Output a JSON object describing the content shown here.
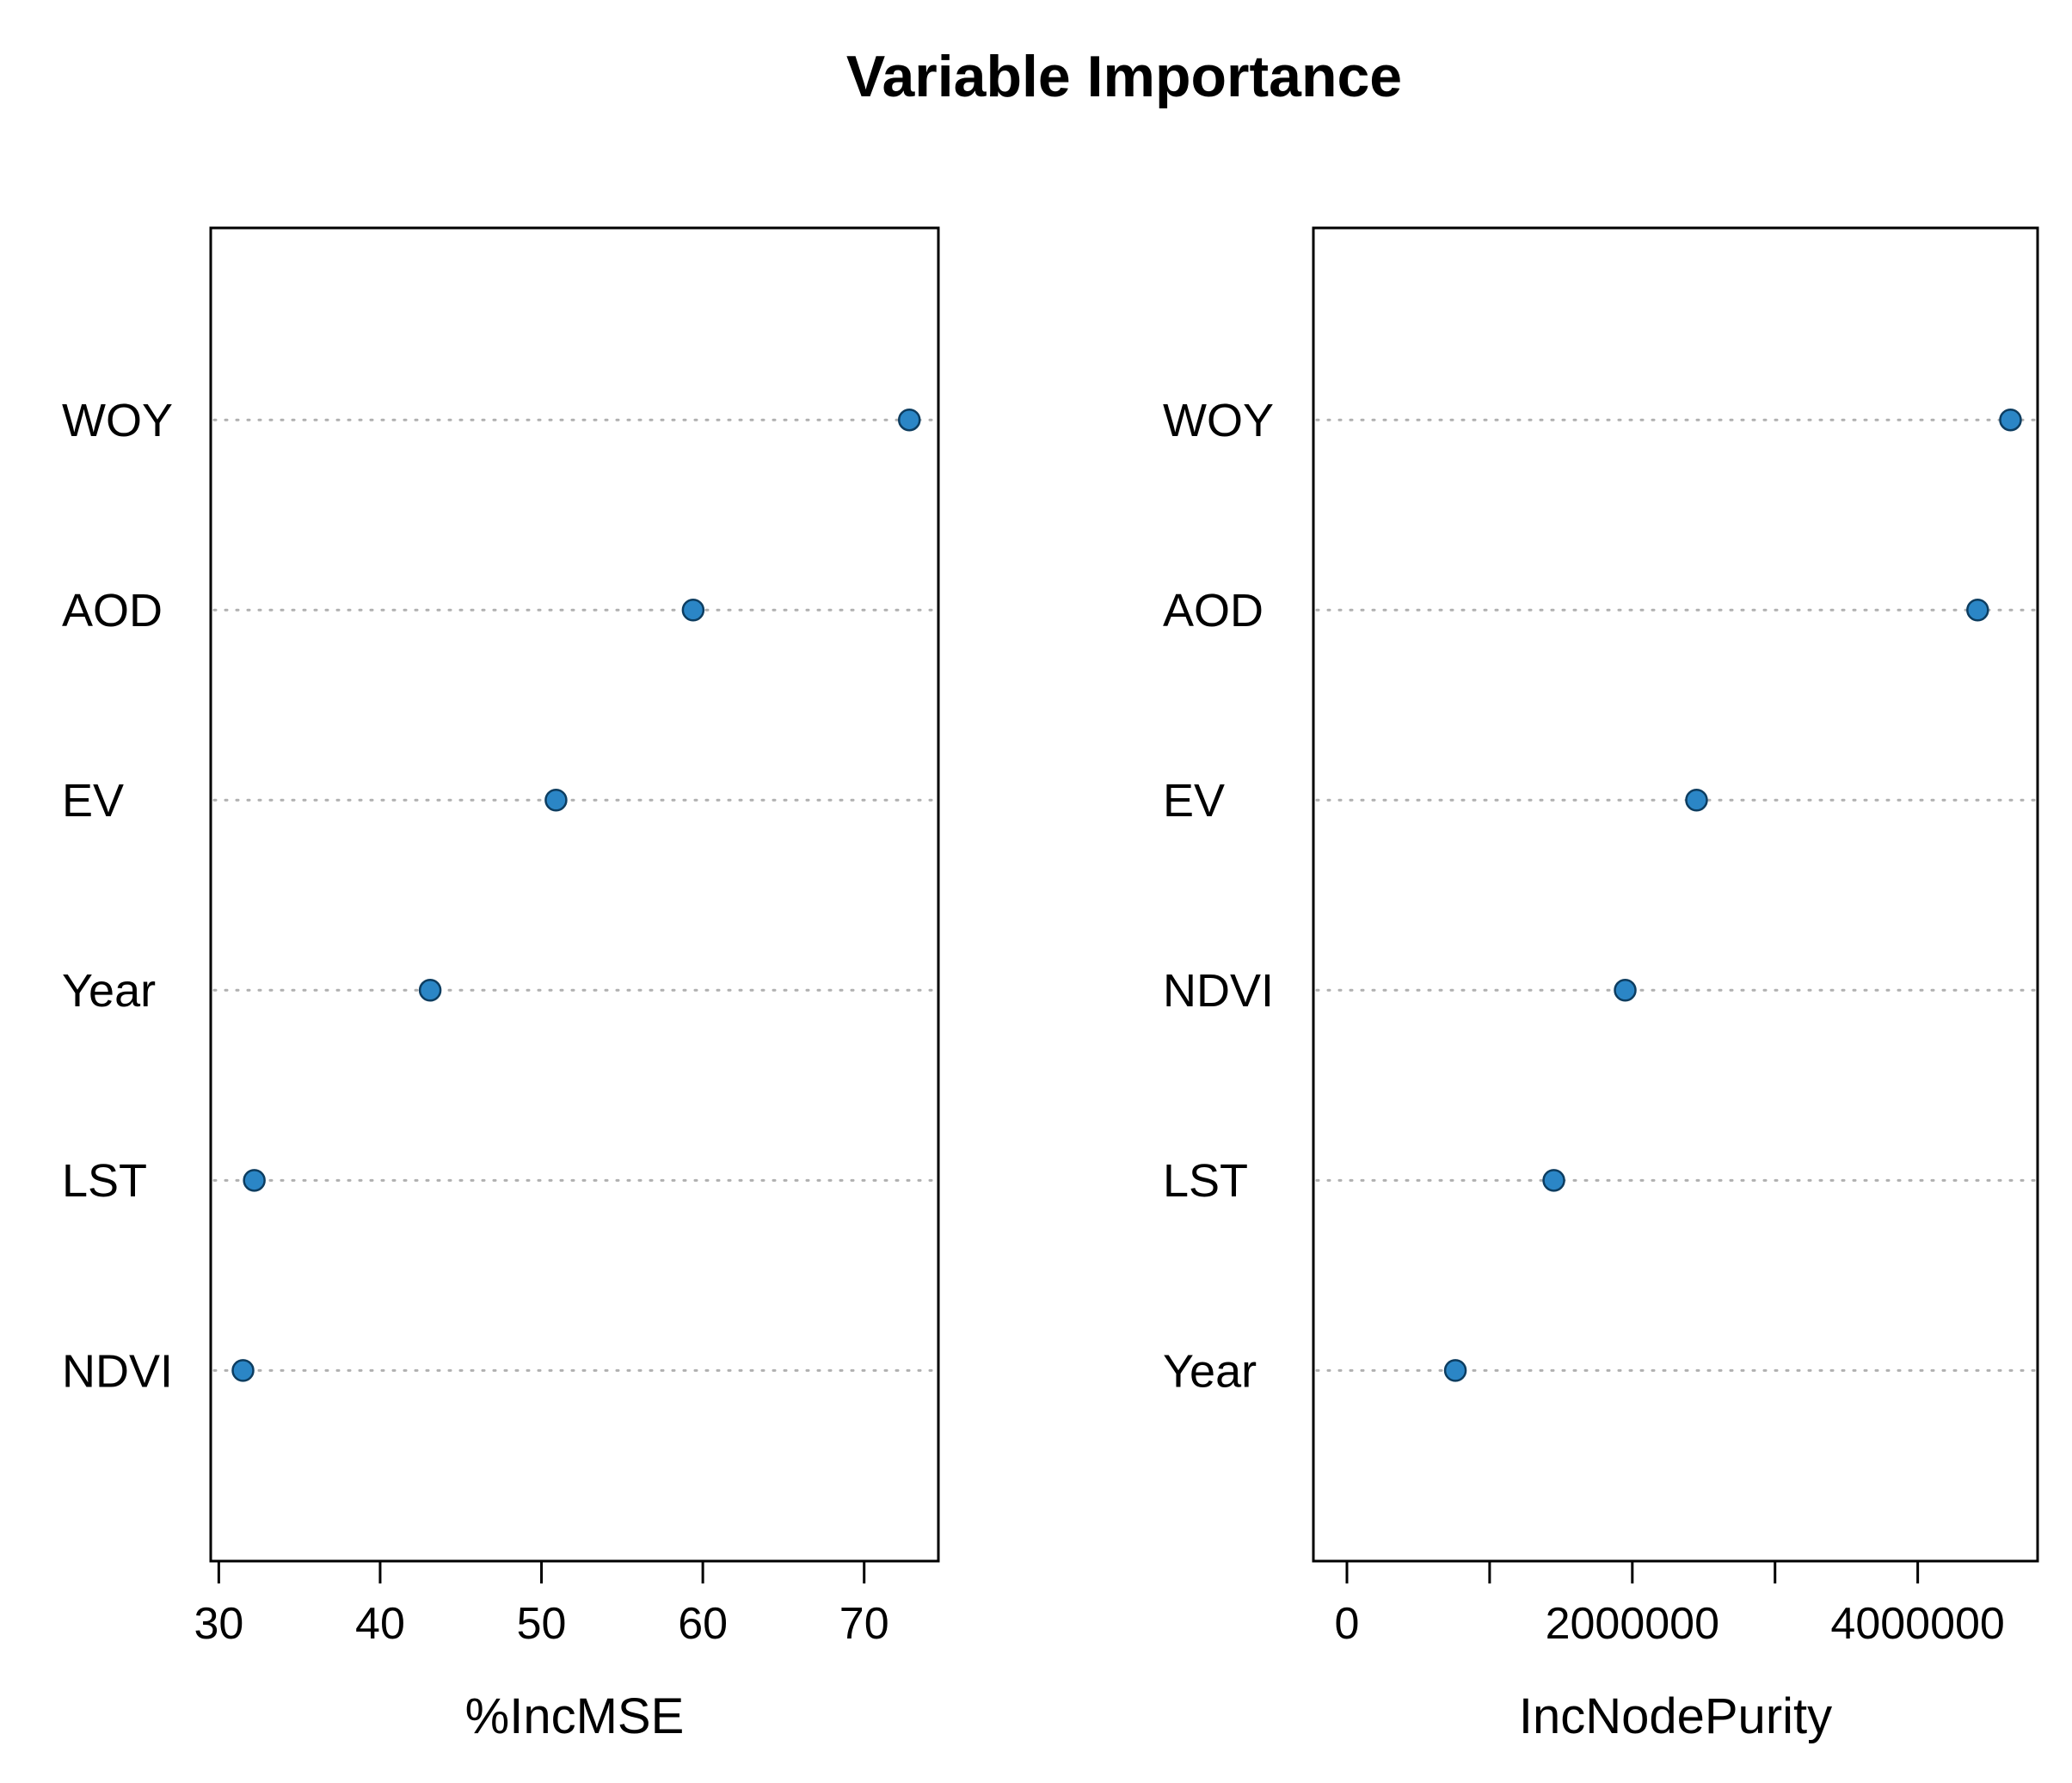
{
  "title": "Variable Importance",
  "style": {
    "background": "#ffffff",
    "point_fill": "#2b86c6",
    "point_stroke": "#0d3d60",
    "grid_color": "#b0b0b0",
    "axis_color": "#000000",
    "text_color": "#000000"
  },
  "chart_data": [
    {
      "type": "scatter",
      "subtype": "dotchart",
      "title": "Variable Importance",
      "xlabel": "%IncMSE",
      "ylabel": "",
      "categories": [
        "WOY",
        "AOD",
        "EV",
        "Year",
        "LST",
        "NDVI"
      ],
      "values": [
        72.8,
        59.4,
        50.9,
        43.1,
        32.2,
        31.5
      ],
      "xlim": [
        29.5,
        74.6
      ],
      "xticks": [
        {
          "value": 30,
          "label": "30"
        },
        {
          "value": 40,
          "label": "40"
        },
        {
          "value": 50,
          "label": "50"
        },
        {
          "value": 60,
          "label": "60"
        },
        {
          "value": 70,
          "label": "70"
        }
      ],
      "grid": "dotted-horizontal",
      "legend": "none"
    },
    {
      "type": "scatter",
      "subtype": "dotchart",
      "title": "Variable Importance",
      "xlabel": "IncNodePurity",
      "ylabel": "",
      "categories": [
        "WOY",
        "AOD",
        "EV",
        "NDVI",
        "LST",
        "Year"
      ],
      "values": [
        4650000,
        4420000,
        2450000,
        1950000,
        1450000,
        760000
      ],
      "xlim": [
        -235000,
        4840000
      ],
      "xticks": [
        {
          "value": 0,
          "label": "0"
        },
        {
          "value": 1000000,
          "label": ""
        },
        {
          "value": 2000000,
          "label": "2000000"
        },
        {
          "value": 3000000,
          "label": ""
        },
        {
          "value": 4000000,
          "label": "4000000"
        }
      ],
      "grid": "dotted-horizontal",
      "legend": "none"
    }
  ]
}
